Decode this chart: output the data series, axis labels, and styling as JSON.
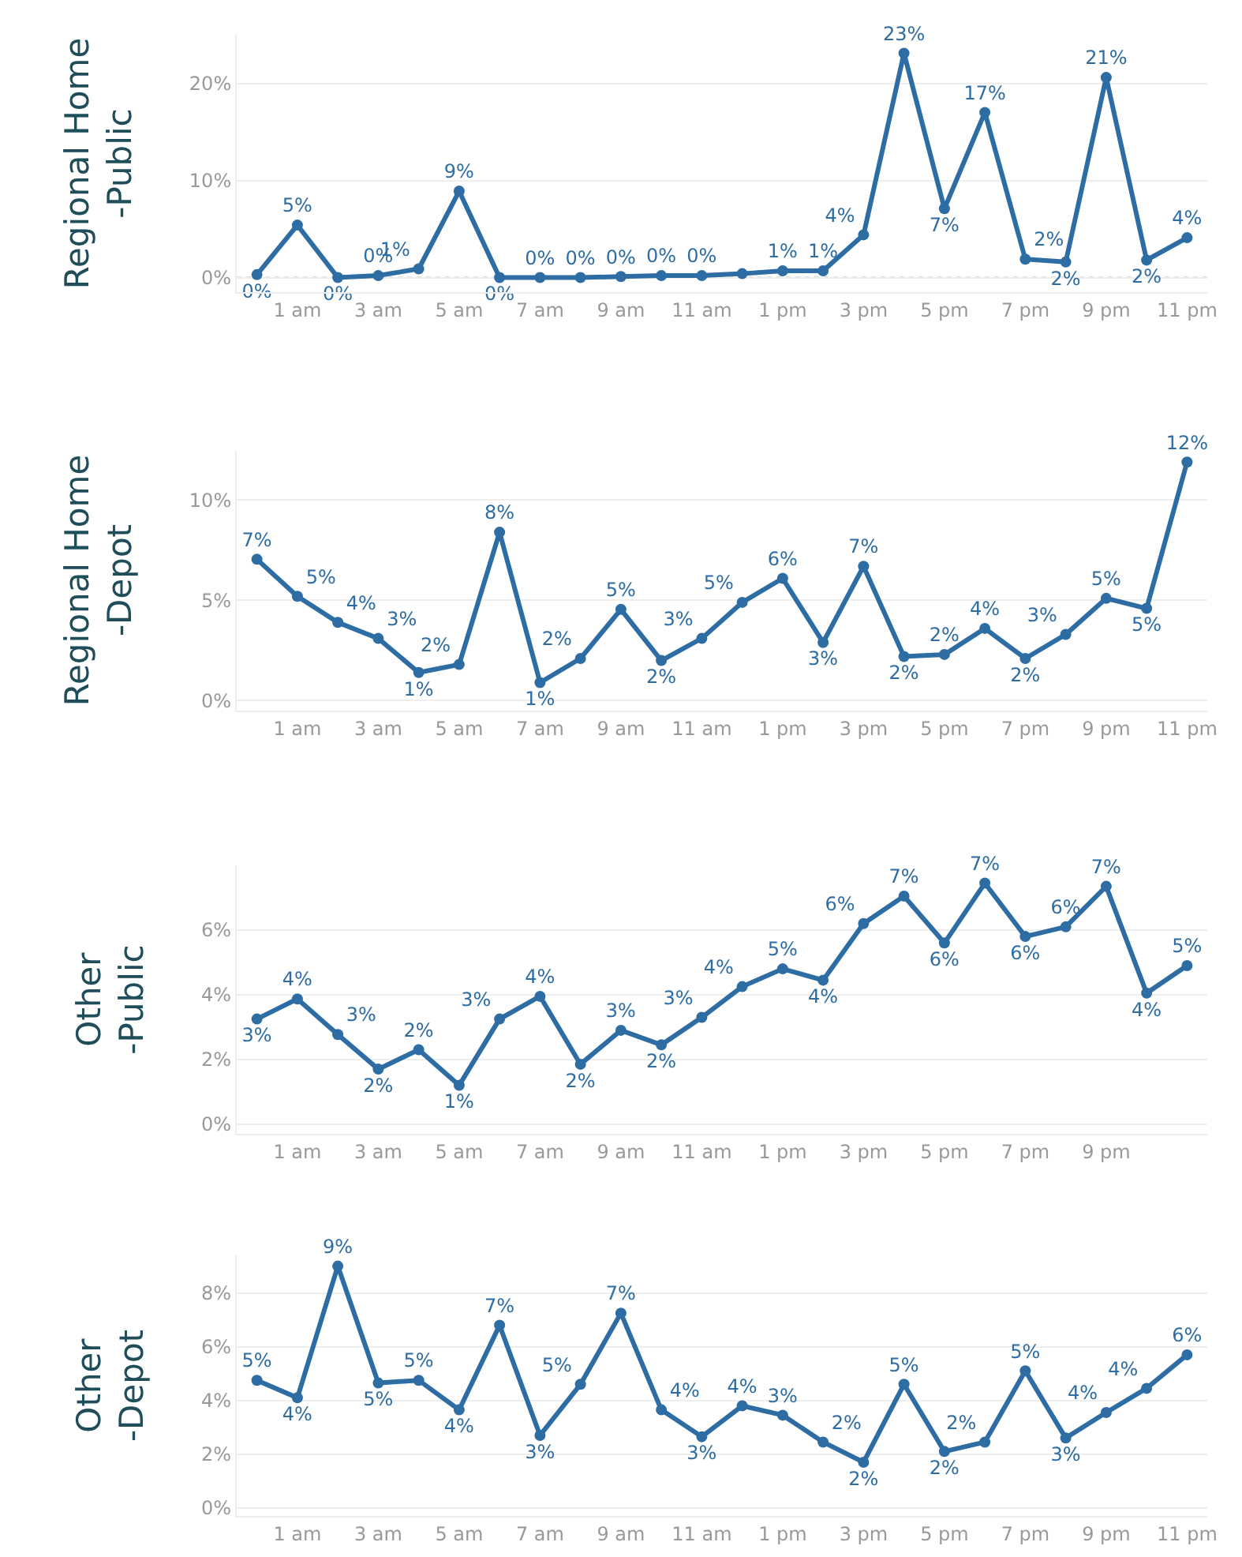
{
  "chart_data": [
    {
      "type": "line",
      "ylabel": "Regional Home\n-Public",
      "categories": [
        null,
        "1 am",
        null,
        "3 am",
        null,
        "5 am",
        null,
        "7 am",
        null,
        "9 am",
        null,
        "11 am",
        null,
        "1 pm",
        null,
        "3 pm",
        null,
        "5 pm",
        null,
        "7 pm",
        null,
        "9 pm",
        null,
        "11 pm"
      ],
      "series": [
        {
          "color": "#2e6da4",
          "values": [
            0.3,
            5.4,
            0,
            0.2,
            0.9,
            8.9,
            0,
            0,
            0,
            0.1,
            0.2,
            0.2,
            0.4,
            0.7,
            0.7,
            4.4,
            23.1,
            7.1,
            17.0,
            1.9,
            1.6,
            20.6,
            1.8,
            4.1
          ],
          "value_labels": [
            "0%",
            "5%",
            "0%",
            "0%",
            "1%",
            "9%",
            "0%",
            "0%",
            "0%",
            "0%",
            "0%",
            "0%",
            null,
            "1%",
            "1%",
            "4%",
            "23%",
            "7%",
            "17%",
            "2%",
            "2%",
            "21%",
            "2%",
            "4%"
          ]
        }
      ],
      "ylim": [
        -1.5,
        25
      ],
      "yticks": [
        {
          "value": 0,
          "label": "0%"
        },
        {
          "value": 10,
          "label": "10%"
        },
        {
          "value": 20,
          "label": "20%"
        }
      ],
      "ref_lines": [
        {
          "axis": "y",
          "value": 0,
          "color": "#bbbbbb",
          "line_style": "dotted"
        }
      ],
      "grid": "y",
      "marker": "circle",
      "line_style": "solid"
    },
    {
      "type": "line",
      "ylabel": "Regional Home\n-Depot",
      "categories": [
        null,
        "1 am",
        null,
        "3 am",
        null,
        "5 am",
        null,
        "7 am",
        null,
        "9 am",
        null,
        "11 am",
        null,
        "1 pm",
        null,
        "3 pm",
        null,
        "5 pm",
        null,
        "7 pm",
        null,
        "9 pm",
        null,
        "11 pm"
      ],
      "series": [
        {
          "color": "#2e6da4",
          "values": [
            7.05,
            5.2,
            3.9,
            3.1,
            1.4,
            1.8,
            8.4,
            0.9,
            2.1,
            4.55,
            2.0,
            3.1,
            4.9,
            6.1,
            2.9,
            6.7,
            2.2,
            2.3,
            3.6,
            2.1,
            3.3,
            5.1,
            4.6,
            11.9
          ],
          "value_labels": [
            "7%",
            "5%",
            "4%",
            "3%",
            "1%",
            "2%",
            "8%",
            "1%",
            "2%",
            "5%",
            "2%",
            "3%",
            "5%",
            "6%",
            "3%",
            "7%",
            "2%",
            "2%",
            "4%",
            "2%",
            "3%",
            "5%",
            "5%",
            "12%"
          ]
        }
      ],
      "ylim": [
        -0.5,
        12.5
      ],
      "yticks": [
        {
          "value": 0,
          "label": "0%"
        },
        {
          "value": 5,
          "label": "5%"
        },
        {
          "value": 10,
          "label": "10%"
        }
      ],
      "grid": "y",
      "marker": "circle",
      "line_style": "solid"
    },
    {
      "type": "line",
      "ylabel": "Other\n-Public",
      "categories": [
        null,
        "1 am",
        null,
        "3 am",
        null,
        "5 am",
        null,
        "7 am",
        null,
        "9 am",
        null,
        "11 am",
        null,
        "1 pm",
        null,
        "3 pm",
        null,
        "5 pm",
        null,
        "7 pm",
        null,
        "9 pm",
        null,
        null
      ],
      "series": [
        {
          "color": "#2e6da4",
          "values": [
            3.25,
            3.87,
            2.77,
            1.7,
            2.3,
            1.2,
            3.25,
            3.95,
            1.85,
            2.9,
            2.45,
            3.3,
            4.25,
            4.8,
            4.45,
            6.2,
            7.05,
            5.6,
            7.45,
            5.8,
            6.1,
            7.35,
            4.05,
            4.9
          ],
          "value_labels": [
            "3%",
            "4%",
            "3%",
            "2%",
            "2%",
            "1%",
            "3%",
            "4%",
            "2%",
            "3%",
            "2%",
            "3%",
            "4%",
            "5%",
            "4%",
            "6%",
            "7%",
            "6%",
            "7%",
            "6%",
            "6%",
            "7%",
            "4%",
            "5%"
          ]
        }
      ],
      "ylim": [
        -0.3,
        8
      ],
      "yticks": [
        {
          "value": 0,
          "label": "0%"
        },
        {
          "value": 2,
          "label": "2%"
        },
        {
          "value": 4,
          "label": "4%"
        },
        {
          "value": 6,
          "label": "6%"
        }
      ],
      "grid": "y",
      "marker": "circle",
      "line_style": "solid"
    },
    {
      "type": "line",
      "ylabel": "Other\n-Depot",
      "categories": [
        null,
        "1 am",
        null,
        "3 am",
        null,
        "5 am",
        null,
        "7 am",
        null,
        "9 am",
        null,
        "11 am",
        null,
        "1 pm",
        null,
        "3 pm",
        null,
        "5 pm",
        null,
        "7 pm",
        null,
        "9 pm",
        null,
        "11 pm"
      ],
      "series": [
        {
          "color": "#2e6da4",
          "values": [
            4.75,
            4.1,
            9.0,
            4.65,
            4.75,
            3.65,
            6.8,
            2.7,
            4.6,
            7.25,
            3.65,
            2.65,
            3.8,
            3.45,
            2.45,
            1.7,
            4.6,
            2.1,
            2.45,
            5.1,
            2.6,
            3.55,
            4.45,
            5.7
          ],
          "value_labels": [
            "5%",
            "4%",
            "9%",
            "5%",
            "5%",
            "4%",
            "7%",
            "3%",
            "5%",
            "7%",
            "4%",
            "3%",
            "4%",
            "3%",
            "2%",
            "2%",
            "5%",
            "2%",
            "2%",
            "5%",
            "3%",
            "4%",
            "4%",
            "6%"
          ]
        }
      ],
      "ylim": [
        -0.3,
        9.4
      ],
      "yticks": [
        {
          "value": 0,
          "label": "0%"
        },
        {
          "value": 2,
          "label": "2%"
        },
        {
          "value": 4,
          "label": "4%"
        },
        {
          "value": 6,
          "label": "6%"
        },
        {
          "value": 8,
          "label": "8%"
        }
      ],
      "grid": "y",
      "marker": "circle",
      "line_style": "solid"
    }
  ]
}
